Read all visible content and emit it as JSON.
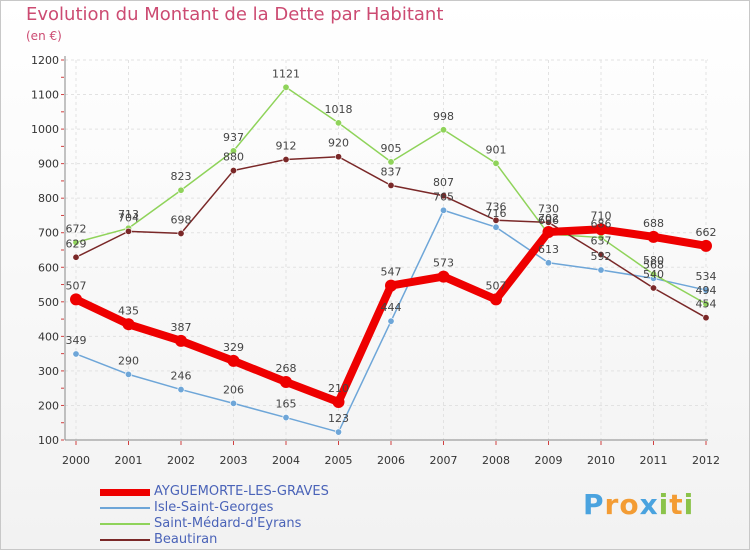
{
  "chart_data": {
    "type": "line",
    "title": "Evolution du Montant de la Dette par Habitant",
    "subtitle": "(en €)",
    "x": [
      "2000",
      "2001",
      "2002",
      "2003",
      "2004",
      "2005",
      "2006",
      "2007",
      "2008",
      "2009",
      "2010",
      "2011",
      "2012"
    ],
    "ylim": [
      100,
      1200
    ],
    "yticks": [
      100,
      200,
      300,
      400,
      500,
      600,
      700,
      800,
      900,
      1000,
      1100,
      1200
    ],
    "grid": true,
    "series": [
      {
        "name": "AYGUEMORTE-LES-GRAVES",
        "color": "#ee0000",
        "width": 8,
        "values": [
          507,
          435,
          387,
          329,
          268,
          210,
          547,
          573,
          507,
          702,
          710,
          688,
          662
        ]
      },
      {
        "name": "Isle-Saint-Georges",
        "color": "#6ea6d8",
        "width": 1.5,
        "values": [
          349,
          290,
          246,
          206,
          165,
          123,
          444,
          765,
          716,
          613,
          592,
          568,
          534
        ]
      },
      {
        "name": "Saint-Médard-d'Eyrans",
        "color": "#8fd35a",
        "width": 1.5,
        "values": [
          672,
          713,
          823,
          937,
          1121,
          1018,
          905,
          998,
          901,
          696,
          686,
          580,
          494
        ]
      },
      {
        "name": "Beautiran",
        "color": "#7a2828",
        "width": 1.5,
        "values": [
          629,
          704,
          698,
          880,
          912,
          920,
          837,
          807,
          736,
          730,
          637,
          540,
          454
        ]
      }
    ],
    "legend_position": "bottom-left"
  },
  "logo": {
    "letters": [
      "P",
      "r",
      "o",
      "x",
      "i",
      "t",
      "i"
    ],
    "colors": [
      "#4aa3df",
      "#f39c34",
      "#f39c34",
      "#4aa3df",
      "#8bc34a",
      "#f39c34",
      "#8bc34a"
    ]
  }
}
